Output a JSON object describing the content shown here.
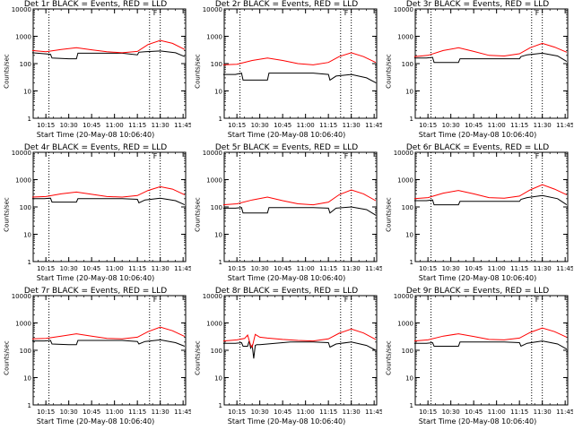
{
  "colors": {
    "events": "#000000",
    "lld": "#ff0000",
    "background": "#ffffff",
    "axes": "#000000"
  },
  "common": {
    "xlabel": "Start Time (20-May-08 10:06:40)",
    "ylabel": "Counts/sec",
    "x_ticks": [
      "10:15",
      "10:30",
      "10:45",
      "11:00",
      "11:15",
      "11:30",
      "11:45"
    ],
    "y_ticks": [
      "1",
      "10",
      "100",
      "1000",
      "10000"
    ],
    "marker_label": "F"
  },
  "chart_data": [
    {
      "type": "line",
      "title": "Det 1r BLACK = Events, RED = LLD",
      "xlim": [
        "10:06:40",
        "11:46:40"
      ],
      "ylim": [
        1,
        10000
      ],
      "yscale": "log",
      "vlines": [
        "10:17",
        "11:23",
        "11:30"
      ],
      "series": [
        {
          "name": "Events",
          "color": "#000000",
          "x": [
            "10:06",
            "10:14",
            "10:18",
            "10:19",
            "10:30",
            "10:35",
            "10:36",
            "10:50",
            "11:05",
            "11:15",
            "11:16",
            "11:20",
            "11:30",
            "11:40",
            "11:46"
          ],
          "values": [
            250,
            230,
            220,
            160,
            150,
            150,
            240,
            240,
            240,
            210,
            260,
            270,
            290,
            250,
            180
          ]
        },
        {
          "name": "LLD",
          "color": "#ff0000",
          "x": [
            "10:06",
            "10:15",
            "10:25",
            "10:35",
            "10:45",
            "10:55",
            "11:05",
            "11:15",
            "11:22",
            "11:30",
            "11:38",
            "11:46"
          ],
          "values": [
            300,
            270,
            330,
            380,
            320,
            270,
            250,
            280,
            500,
            700,
            550,
            330
          ]
        }
      ]
    },
    {
      "type": "line",
      "title": "Det 2r BLACK = Events, RED = LLD",
      "xlim": [
        "10:06:40",
        "11:46:40"
      ],
      "ylim": [
        1,
        10000
      ],
      "yscale": "log",
      "vlines": [
        "10:17",
        "11:23",
        "11:30"
      ],
      "series": [
        {
          "name": "Events",
          "color": "#000000",
          "x": [
            "10:06",
            "10:14",
            "10:18",
            "10:19",
            "10:30",
            "10:35",
            "10:36",
            "10:50",
            "11:05",
            "11:15",
            "11:16",
            "11:20",
            "11:30",
            "11:40",
            "11:46"
          ],
          "values": [
            40,
            40,
            45,
            25,
            25,
            25,
            45,
            45,
            45,
            40,
            25,
            35,
            40,
            30,
            20
          ]
        },
        {
          "name": "LLD",
          "color": "#ff0000",
          "x": [
            "10:06",
            "10:15",
            "10:25",
            "10:35",
            "10:45",
            "10:55",
            "11:05",
            "11:15",
            "11:22",
            "11:30",
            "11:38",
            "11:46"
          ],
          "values": [
            90,
            95,
            130,
            160,
            130,
            100,
            90,
            110,
            180,
            250,
            180,
            110
          ]
        }
      ]
    },
    {
      "type": "line",
      "title": "Det 3r BLACK = Events, RED = LLD",
      "xlim": [
        "10:06:40",
        "11:46:40"
      ],
      "ylim": [
        1,
        10000
      ],
      "yscale": "log",
      "vlines": [
        "10:17",
        "11:23",
        "11:30"
      ],
      "series": [
        {
          "name": "Events",
          "color": "#000000",
          "x": [
            "10:06",
            "10:14",
            "10:18",
            "10:19",
            "10:30",
            "10:35",
            "10:36",
            "10:50",
            "11:05",
            "11:15",
            "11:16",
            "11:20",
            "11:30",
            "11:40",
            "11:46"
          ],
          "values": [
            160,
            160,
            170,
            110,
            110,
            110,
            150,
            150,
            150,
            150,
            180,
            210,
            240,
            190,
            120
          ]
        },
        {
          "name": "LLD",
          "color": "#ff0000",
          "x": [
            "10:06",
            "10:15",
            "10:25",
            "10:35",
            "10:45",
            "10:55",
            "11:05",
            "11:15",
            "11:22",
            "11:30",
            "11:38",
            "11:46"
          ],
          "values": [
            180,
            200,
            300,
            380,
            280,
            200,
            190,
            230,
            380,
            550,
            400,
            260
          ]
        }
      ]
    },
    {
      "type": "line",
      "title": "Det 4r BLACK = Events, RED = LLD",
      "xlim": [
        "10:06:40",
        "11:46:40"
      ],
      "ylim": [
        1,
        10000
      ],
      "yscale": "log",
      "vlines": [
        "10:17",
        "11:23",
        "11:30"
      ],
      "series": [
        {
          "name": "Events",
          "color": "#000000",
          "x": [
            "10:06",
            "10:14",
            "10:18",
            "10:19",
            "10:30",
            "10:35",
            "10:36",
            "10:50",
            "11:05",
            "11:15",
            "11:16",
            "11:20",
            "11:30",
            "11:40",
            "11:46"
          ],
          "values": [
            200,
            200,
            210,
            150,
            150,
            150,
            200,
            200,
            200,
            190,
            140,
            180,
            210,
            170,
            120
          ]
        },
        {
          "name": "LLD",
          "color": "#ff0000",
          "x": [
            "10:06",
            "10:15",
            "10:25",
            "10:35",
            "10:45",
            "10:55",
            "11:05",
            "11:15",
            "11:22",
            "11:30",
            "11:38",
            "11:46"
          ],
          "values": [
            230,
            240,
            300,
            350,
            290,
            240,
            230,
            260,
            400,
            550,
            450,
            280
          ]
        }
      ]
    },
    {
      "type": "line",
      "title": "Det 5r BLACK = Events, RED = LLD",
      "xlim": [
        "10:06:40",
        "11:46:40"
      ],
      "ylim": [
        1,
        10000
      ],
      "yscale": "log",
      "vlines": [
        "10:17",
        "11:23",
        "11:30"
      ],
      "series": [
        {
          "name": "Events",
          "color": "#000000",
          "x": [
            "10:06",
            "10:14",
            "10:18",
            "10:19",
            "10:30",
            "10:35",
            "10:36",
            "10:50",
            "11:05",
            "11:15",
            "11:16",
            "11:20",
            "11:30",
            "11:40",
            "11:46"
          ],
          "values": [
            90,
            90,
            95,
            60,
            60,
            60,
            95,
            95,
            95,
            90,
            60,
            90,
            100,
            80,
            50
          ]
        },
        {
          "name": "LLD",
          "color": "#ff0000",
          "x": [
            "10:06",
            "10:15",
            "10:25",
            "10:35",
            "10:45",
            "10:55",
            "11:05",
            "11:15",
            "11:22",
            "11:30",
            "11:38",
            "11:46"
          ],
          "values": [
            120,
            130,
            180,
            230,
            170,
            130,
            120,
            150,
            280,
            420,
            300,
            170
          ]
        }
      ]
    },
    {
      "type": "line",
      "title": "Det 6r BLACK = Events, RED = LLD",
      "xlim": [
        "10:06:40",
        "11:46:40"
      ],
      "ylim": [
        1,
        10000
      ],
      "yscale": "log",
      "vlines": [
        "10:17",
        "11:23",
        "11:30"
      ],
      "series": [
        {
          "name": "Events",
          "color": "#000000",
          "x": [
            "10:06",
            "10:14",
            "10:18",
            "10:19",
            "10:30",
            "10:35",
            "10:36",
            "10:50",
            "11:05",
            "11:15",
            "11:16",
            "11:20",
            "11:30",
            "11:40",
            "11:46"
          ],
          "values": [
            170,
            170,
            180,
            120,
            120,
            120,
            160,
            160,
            160,
            160,
            190,
            220,
            260,
            200,
            120
          ]
        },
        {
          "name": "LLD",
          "color": "#ff0000",
          "x": [
            "10:06",
            "10:15",
            "10:25",
            "10:35",
            "10:45",
            "10:55",
            "11:05",
            "11:15",
            "11:22",
            "11:30",
            "11:38",
            "11:46"
          ],
          "values": [
            200,
            220,
            320,
            400,
            300,
            220,
            210,
            250,
            420,
            650,
            450,
            280
          ]
        }
      ]
    },
    {
      "type": "line",
      "title": "Det 7r BLACK = Events, RED = LLD",
      "xlim": [
        "10:06:40",
        "11:46:40"
      ],
      "ylim": [
        1,
        10000
      ],
      "yscale": "log",
      "vlines": [
        "10:17",
        "11:23",
        "11:30"
      ],
      "series": [
        {
          "name": "Events",
          "color": "#000000",
          "x": [
            "10:06",
            "10:14",
            "10:18",
            "10:19",
            "10:30",
            "10:35",
            "10:36",
            "10:50",
            "11:05",
            "11:15",
            "11:16",
            "11:20",
            "11:30",
            "11:40",
            "11:46"
          ],
          "values": [
            220,
            220,
            230,
            170,
            160,
            160,
            230,
            230,
            230,
            210,
            170,
            210,
            240,
            190,
            140
          ]
        },
        {
          "name": "LLD",
          "color": "#ff0000",
          "x": [
            "10:06",
            "10:15",
            "10:25",
            "10:35",
            "10:45",
            "10:55",
            "11:05",
            "11:15",
            "11:22",
            "11:30",
            "11:38",
            "11:46"
          ],
          "values": [
            260,
            270,
            330,
            400,
            330,
            270,
            260,
            300,
            480,
            700,
            520,
            320
          ]
        }
      ]
    },
    {
      "type": "line",
      "title": "Det 8r BLACK = Events, RED = LLD",
      "xlim": [
        "10:06:40",
        "11:46:40"
      ],
      "ylim": [
        1,
        10000
      ],
      "yscale": "log",
      "vlines": [
        "10:17",
        "11:23",
        "11:30"
      ],
      "series": [
        {
          "name": "Events",
          "color": "#000000",
          "x": [
            "10:06",
            "10:14",
            "10:18",
            "10:19",
            "10:22",
            "10:23",
            "10:24",
            "10:25",
            "10:26",
            "10:27",
            "10:28",
            "10:30",
            "10:35",
            "10:50",
            "11:05",
            "11:15",
            "11:16",
            "11:20",
            "11:30",
            "11:40",
            "11:46"
          ],
          "values": [
            180,
            180,
            190,
            140,
            140,
            220,
            120,
            150,
            50,
            150,
            160,
            160,
            170,
            200,
            200,
            190,
            130,
            170,
            200,
            150,
            100
          ]
        },
        {
          "name": "LLD",
          "color": "#ff0000",
          "x": [
            "10:06",
            "10:15",
            "10:20",
            "10:22",
            "10:24",
            "10:25",
            "10:27",
            "10:30",
            "10:35",
            "10:45",
            "10:55",
            "11:05",
            "11:15",
            "11:22",
            "11:30",
            "11:38",
            "11:46"
          ],
          "values": [
            220,
            240,
            270,
            360,
            150,
            130,
            380,
            300,
            280,
            250,
            230,
            220,
            260,
            420,
            600,
            430,
            250
          ]
        }
      ]
    },
    {
      "type": "line",
      "title": "Det 9r BLACK = Events, RED = LLD",
      "xlim": [
        "10:06:40",
        "11:46:40"
      ],
      "ylim": [
        1,
        10000
      ],
      "yscale": "log",
      "vlines": [
        "10:17",
        "11:23",
        "11:30"
      ],
      "series": [
        {
          "name": "Events",
          "color": "#000000",
          "x": [
            "10:06",
            "10:14",
            "10:18",
            "10:19",
            "10:30",
            "10:35",
            "10:36",
            "10:50",
            "11:05",
            "11:15",
            "11:16",
            "11:20",
            "11:30",
            "11:40",
            "11:46"
          ],
          "values": [
            180,
            180,
            190,
            140,
            140,
            140,
            200,
            200,
            200,
            190,
            140,
            180,
            220,
            170,
            110
          ]
        },
        {
          "name": "LLD",
          "color": "#ff0000",
          "x": [
            "10:06",
            "10:15",
            "10:25",
            "10:35",
            "10:45",
            "10:55",
            "11:05",
            "11:15",
            "11:22",
            "11:30",
            "11:38",
            "11:46"
          ],
          "values": [
            220,
            240,
            330,
            400,
            320,
            250,
            240,
            280,
            450,
            650,
            480,
            300
          ]
        }
      ]
    }
  ]
}
